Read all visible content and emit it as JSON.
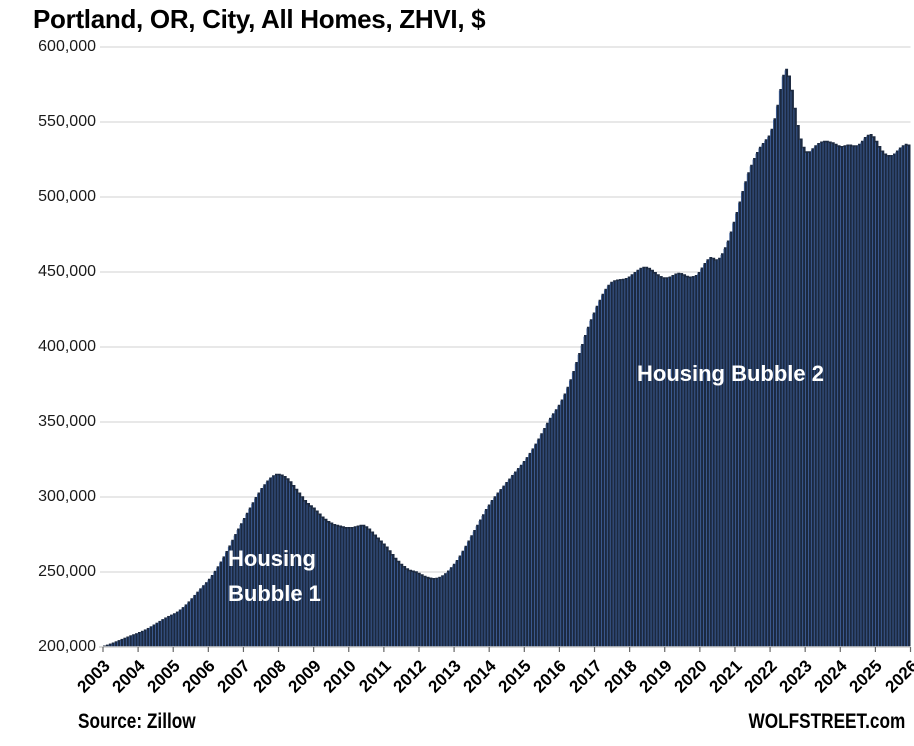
{
  "title": "Portland, OR, City, All Homes, ZHVI, $",
  "annotations": {
    "bubble1_line1": "Housing",
    "bubble1_line2": "Bubble 1",
    "bubble2": "Housing Bubble 2"
  },
  "footer": {
    "source": "Source: Zillow",
    "brand": "WOLFSTREET.com"
  },
  "colors": {
    "bar_fill": "#1b2940",
    "bar_stripe": "#3e5e96",
    "gridline": "#d9d9d9",
    "axis": "#d0d0d0",
    "tick": "#666666",
    "annotation_text": "#ffffff",
    "title_text": "#000000"
  },
  "chart_data": {
    "type": "bar",
    "title": "Portland, OR, City, All Homes, ZHVI, $",
    "unit": "USD",
    "frequency": "monthly",
    "x_start": "2003-01",
    "x_end": "2026-01",
    "grid": "horizontal",
    "legend": "none",
    "y_axis": {
      "min_thousands": 200,
      "max_thousands": 600,
      "tick_step_thousands": 50,
      "tick_labels": [
        "600,000",
        "550,000",
        "500,000",
        "450,000",
        "400,000",
        "350,000",
        "300,000",
        "250,000",
        "200,000"
      ]
    },
    "x_tick_labels": [
      "2003",
      "2004",
      "2005",
      "2006",
      "2007",
      "2008",
      "2009",
      "2010",
      "2011",
      "2012",
      "2013",
      "2014",
      "2015",
      "2016",
      "2017",
      "2018",
      "2019",
      "2020",
      "2021",
      "2022",
      "2023",
      "2024",
      "2025",
      "2026"
    ],
    "values_note": "ZHVI in thousands of USD, monthly Jan 2003 - Jan 2026",
    "values_usd_thousands": [
      201.0,
      201.6,
      202.3,
      203.0,
      203.8,
      204.6,
      205.4,
      206.2,
      207.0,
      207.8,
      208.5,
      209.2,
      210.0,
      210.8,
      211.7,
      212.7,
      213.8,
      215.0,
      216.2,
      217.4,
      218.6,
      219.7,
      220.7,
      221.6,
      222.5,
      223.6,
      225.0,
      226.6,
      228.4,
      230.4,
      232.5,
      234.7,
      236.9,
      239.1,
      241.2,
      243.2,
      245.5,
      248.0,
      250.8,
      253.8,
      257.0,
      260.4,
      264.0,
      267.7,
      271.5,
      275.3,
      279.0,
      282.5,
      286.0,
      289.5,
      293.0,
      296.5,
      300.0,
      303.0,
      306.0,
      308.5,
      311.0,
      313.0,
      314.5,
      315.5,
      315.5,
      315.0,
      314.0,
      312.5,
      310.5,
      308.0,
      305.5,
      303.0,
      300.5,
      298.0,
      296.0,
      294.5,
      293.0,
      291.0,
      289.0,
      287.0,
      285.5,
      284.0,
      283.0,
      282.0,
      281.5,
      281.0,
      280.5,
      280.0,
      280.0,
      280.0,
      280.5,
      281.0,
      281.5,
      281.5,
      280.5,
      279.0,
      277.0,
      275.0,
      273.0,
      271.0,
      269.0,
      267.0,
      264.5,
      262.0,
      259.5,
      257.5,
      255.5,
      254.0,
      252.5,
      251.5,
      251.0,
      250.5,
      249.5,
      248.5,
      247.5,
      246.8,
      246.3,
      246.0,
      246.2,
      246.8,
      247.8,
      249.2,
      251.0,
      253.2,
      255.5,
      258.0,
      261.0,
      264.2,
      267.5,
      271.0,
      274.5,
      278.0,
      281.5,
      285.0,
      288.5,
      292.0,
      295.0,
      298.0,
      300.5,
      303.0,
      305.3,
      307.6,
      310.0,
      312.3,
      314.7,
      317.0,
      319.3,
      321.5,
      324.0,
      326.6,
      329.4,
      332.4,
      335.6,
      339.0,
      342.5,
      346.0,
      349.5,
      352.8,
      355.8,
      358.5,
      361.5,
      365.0,
      369.0,
      373.5,
      378.5,
      384.0,
      390.0,
      396.0,
      402.0,
      408.0,
      413.5,
      418.5,
      423.0,
      427.5,
      431.5,
      435.5,
      438.8,
      441.5,
      443.5,
      444.5,
      445.0,
      445.3,
      445.5,
      446.0,
      447.0,
      448.5,
      450.0,
      451.5,
      452.8,
      453.5,
      453.5,
      452.8,
      451.5,
      450.0,
      448.5,
      447.3,
      446.5,
      446.5,
      447.0,
      448.0,
      449.0,
      449.5,
      449.3,
      448.5,
      447.5,
      447.0,
      447.3,
      448.0,
      450.0,
      453.0,
      456.0,
      458.5,
      460.0,
      459.5,
      458.5,
      459.5,
      462.5,
      466.5,
      471.0,
      477.0,
      483.5,
      490.0,
      497.0,
      504.0,
      510.5,
      516.5,
      521.5,
      526.0,
      530.0,
      533.5,
      536.0,
      538.5,
      541.0,
      545.5,
      552.5,
      561.5,
      572.0,
      581.5,
      585.5,
      581.0,
      571.5,
      559.5,
      548.0,
      539.0,
      533.5,
      530.5,
      530.5,
      532.5,
      534.5,
      536.0,
      537.0,
      537.5,
      537.5,
      537.0,
      536.5,
      535.5,
      534.5,
      534.0,
      534.5,
      535.0,
      535.0,
      534.5,
      534.5,
      535.5,
      537.5,
      540.0,
      541.5,
      542.0,
      540.5,
      537.5,
      534.0,
      531.0,
      529.0,
      528.0,
      528.0,
      529.0,
      531.0,
      533.0,
      534.5,
      535.5,
      535.0
    ]
  }
}
